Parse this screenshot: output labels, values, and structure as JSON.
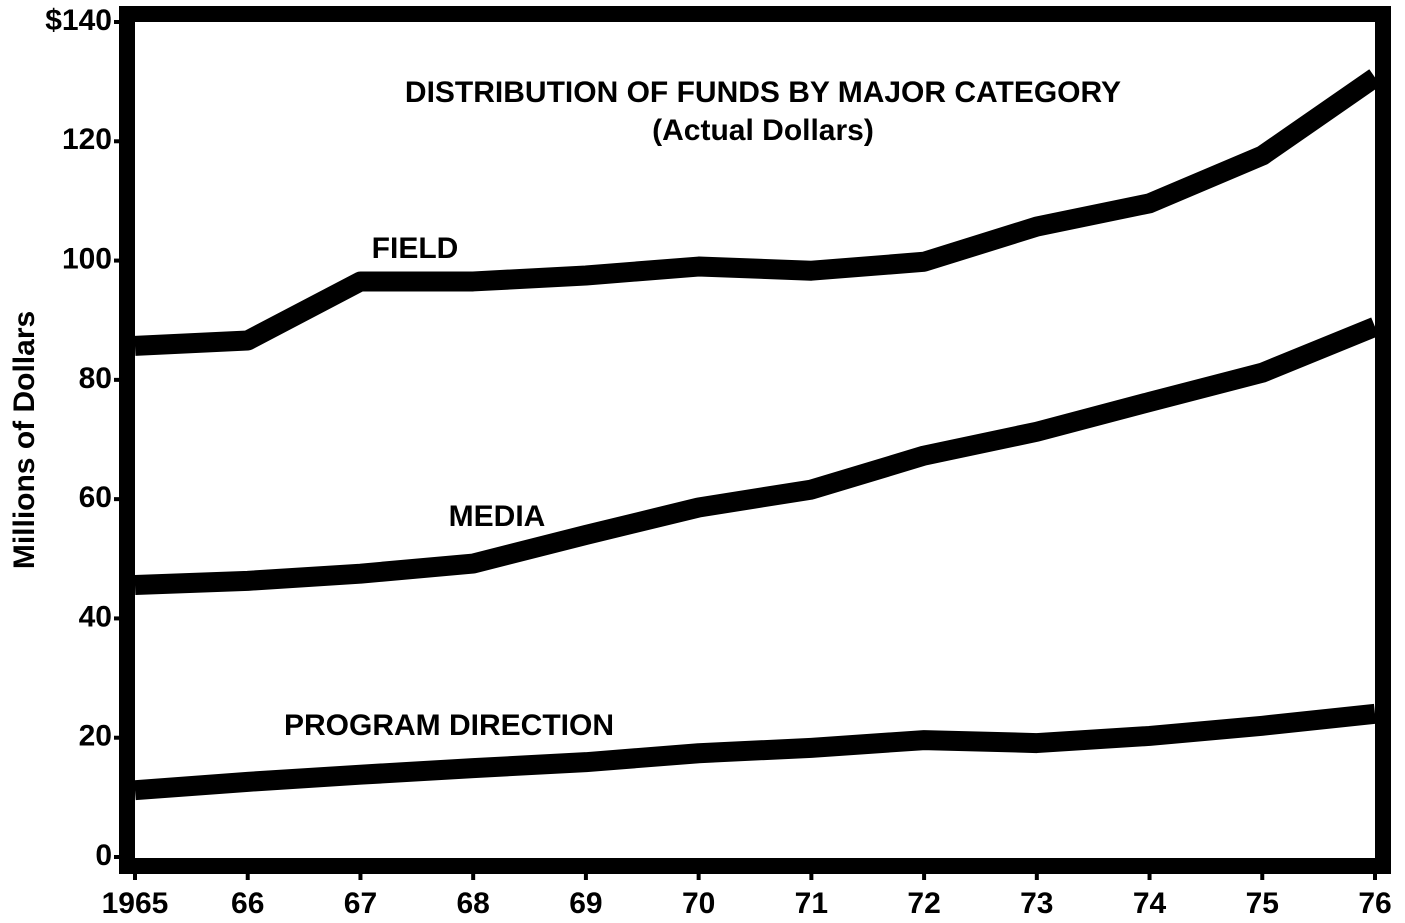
{
  "chart_data": {
    "type": "line",
    "title": "DISTRIBUTION OF FUNDS BY MAJOR CATEGORY",
    "subtitle": "(Actual Dollars)",
    "y_label": "Millions of Dollars",
    "categories": [
      "1965",
      "66",
      "67",
      "68",
      "69",
      "70",
      "71",
      "72",
      "73",
      "74",
      "75",
      "76"
    ],
    "series": [
      {
        "name": "FIELD",
        "color": "#000000",
        "values": [
          85.7,
          86.6,
          96.5,
          96.5,
          97.5,
          99,
          98.3,
          99.8,
          105.7,
          109.6,
          117.6,
          130.7
        ]
      },
      {
        "name": "MEDIA",
        "color": "#000000",
        "values": [
          45.6,
          46.3,
          47.5,
          49.2,
          54,
          58.6,
          61.6,
          67.3,
          71.3,
          76.3,
          81.2,
          88.9
        ]
      },
      {
        "name": "PROGRAM DIRECTION",
        "color": "#000000",
        "values": [
          11.2,
          12.6,
          13.8,
          14.9,
          15.9,
          17.4,
          18.3,
          19.6,
          19.1,
          20.3,
          22,
          24
        ]
      }
    ],
    "ylim": [
      0,
      140
    ],
    "yticks": [
      0,
      20,
      40,
      60,
      80,
      100,
      120,
      {
        "value": 140,
        "label": "$140"
      }
    ]
  }
}
